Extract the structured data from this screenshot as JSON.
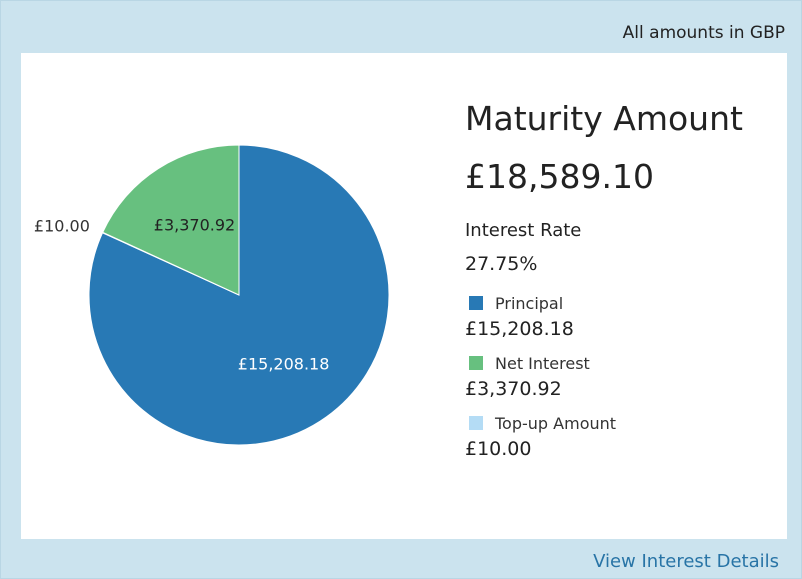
{
  "header": {
    "currency_note": "All amounts in GBP"
  },
  "summary": {
    "maturity_label": "Maturity Amount",
    "maturity_value": "£18,589.10",
    "rate_label": "Interest Rate",
    "rate_value": "27.75%"
  },
  "legend": [
    {
      "name": "Principal",
      "value": "£15,208.18",
      "color": "#2879b5"
    },
    {
      "name": "Net Interest",
      "value": "£3,370.92",
      "color": "#67c07f"
    },
    {
      "name": "Top-up Amount",
      "value": "£10.00",
      "color": "#b4dcf5"
    }
  ],
  "footer": {
    "link_label": "View Interest Details"
  },
  "chart_data": {
    "type": "pie",
    "slices": [
      {
        "name": "Principal",
        "value": 15208.18,
        "label": "£15,208.18",
        "color": "#2879b5"
      },
      {
        "name": "Top-up Amount",
        "value": 10.0,
        "label": "£10.00",
        "color": "#b4dcf5"
      },
      {
        "name": "Net Interest",
        "value": 3370.92,
        "label": "£3,370.92",
        "color": "#67c07f"
      }
    ],
    "legend_placement": "right"
  }
}
